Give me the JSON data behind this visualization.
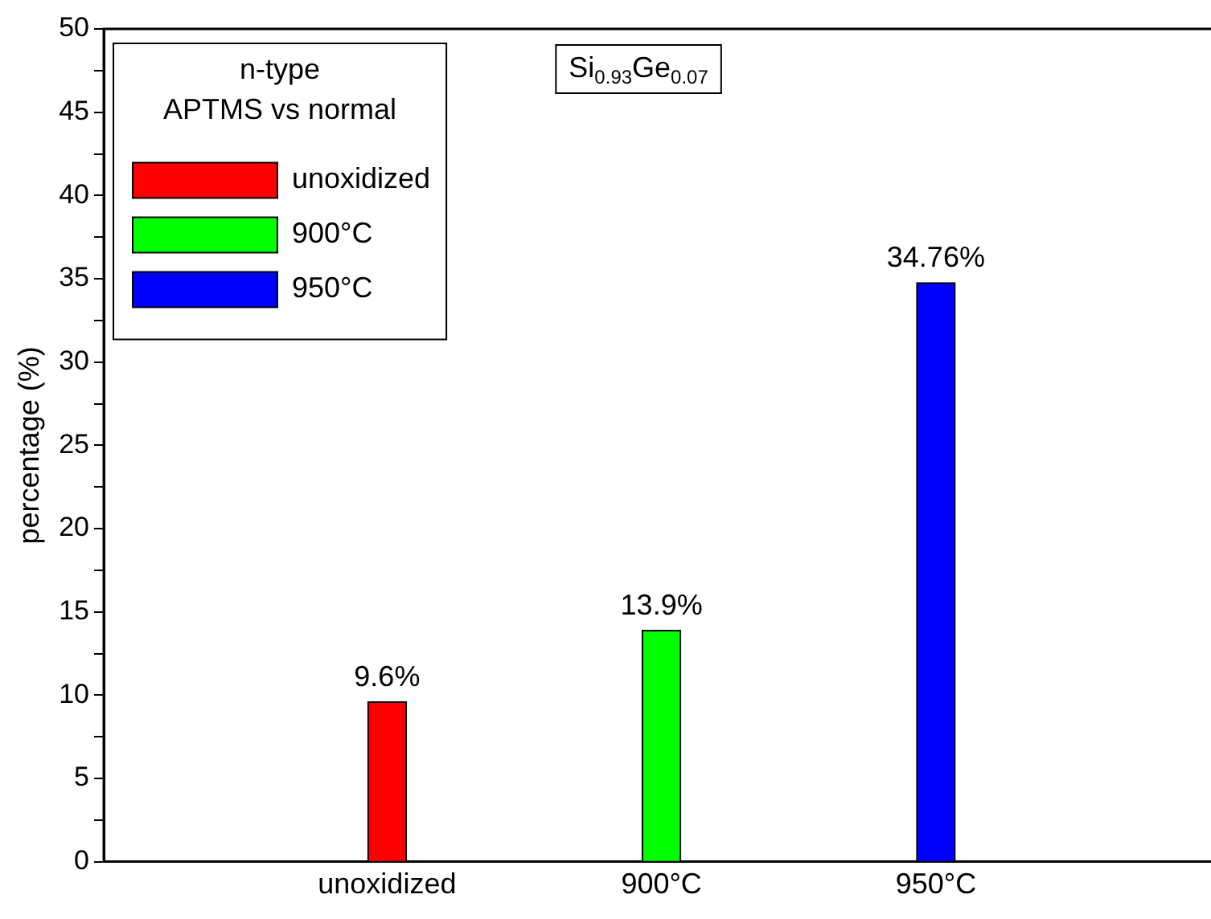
{
  "chart_data": {
    "type": "bar",
    "ylabel": "percentage (%)",
    "legend_title": "n-type\nAPTMS vs normal",
    "legend": "top left",
    "categories": [
      "unoxidized",
      "900°C",
      "950°C"
    ],
    "series": [
      {
        "name": "unoxidized",
        "color": "#ff0000",
        "values": [
          9.6,
          null,
          null
        ],
        "value_labels": [
          "9.6%",
          null,
          null
        ]
      },
      {
        "name": "900°C",
        "color": "#00ff00",
        "values": [
          null,
          13.9,
          null
        ],
        "value_labels": [
          null,
          "13.9%",
          null
        ]
      },
      {
        "name": "950°C",
        "color": "#0000ff",
        "values": [
          null,
          null,
          34.76
        ],
        "value_labels": [
          null,
          null,
          "34.76%"
        ]
      }
    ],
    "ylim": [
      0,
      50
    ],
    "yticks": [
      0,
      {
        "value": 2.5,
        "label": null
      },
      5,
      {
        "value": 7.5,
        "label": null
      },
      10,
      {
        "value": 12.5,
        "label": null
      },
      15,
      {
        "value": 17.5,
        "label": null
      },
      20,
      {
        "value": 22.5,
        "label": null
      },
      25,
      {
        "value": 27.5,
        "label": null
      },
      30,
      {
        "value": 32.5,
        "label": null
      },
      35,
      {
        "value": 37.5,
        "label": null
      },
      40,
      {
        "value": 42.5,
        "label": null
      },
      45,
      {
        "value": 47.5,
        "label": null
      },
      50
    ],
    "annotations": [
      "Si$_{0.93}$Ge$_{0.07}$"
    ]
  }
}
